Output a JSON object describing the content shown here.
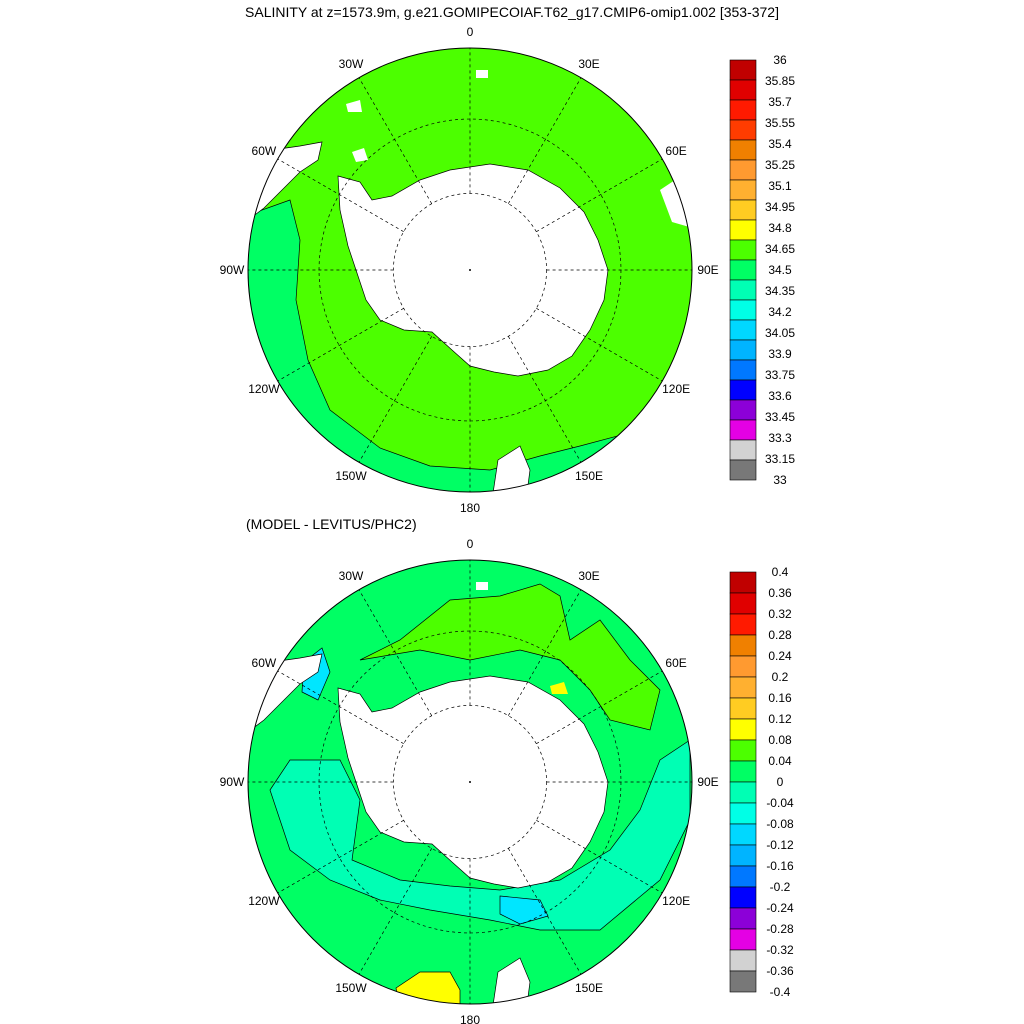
{
  "titles": {
    "main": "SALINITY at z=1573.9m, g.e21.GOMIPECOIAF.T62_g17.CMIP6-omip1.002 [353-372]",
    "difference": "(MODEL - LEVITUS/PHC2)"
  },
  "longitude_labels": [
    "0",
    "30E",
    "60E",
    "90E",
    "120E",
    "150E",
    "180",
    "150W",
    "120W",
    "90W",
    "60W",
    "30W"
  ],
  "colorbars": [
    {
      "id": "salinity",
      "labels": [
        "36",
        "35.85",
        "35.7",
        "35.55",
        "35.4",
        "35.25",
        "35.1",
        "34.95",
        "34.8",
        "34.65",
        "34.5",
        "34.35",
        "34.2",
        "34.05",
        "33.9",
        "33.75",
        "33.6",
        "33.45",
        "33.3",
        "33.15",
        "33"
      ],
      "colors": [
        "#c00000",
        "#e00000",
        "#ff1a00",
        "#ff3c00",
        "#f08000",
        "#ff9a30",
        "#ffb030",
        "#ffcc22",
        "#ffff00",
        "#4cff00",
        "#00ff64",
        "#00ffb4",
        "#00ffe6",
        "#00d8ff",
        "#00b4ff",
        "#0078ff",
        "#0000ff",
        "#8c00d8",
        "#e400e4",
        "#d2d2d2",
        "#787878"
      ]
    },
    {
      "id": "difference",
      "labels": [
        "0.4",
        "0.36",
        "0.32",
        "0.28",
        "0.24",
        "0.2",
        "0.16",
        "0.12",
        "0.08",
        "0.04",
        "0",
        "-0.04",
        "-0.08",
        "-0.12",
        "-0.16",
        "-0.2",
        "-0.24",
        "-0.28",
        "-0.32",
        "-0.36",
        "-0.4"
      ],
      "colors": [
        "#c00000",
        "#e00000",
        "#ff1a00",
        "#f08000",
        "#ff9a30",
        "#ffb030",
        "#ffcc22",
        "#ffff00",
        "#4cff00",
        "#00ff64",
        "#00ffb4",
        "#00ffe6",
        "#00d8ff",
        "#00b4ff",
        "#0078ff",
        "#0000ff",
        "#8c00d8",
        "#e400e4",
        "#d2d2d2",
        "#787878"
      ]
    }
  ],
  "colors": {
    "ocean_top": "#4cff00",
    "ocean_band": "#00ff64",
    "ocean_cyan": "#00ffb4",
    "land": "#ffffff",
    "yellow": "#ffff00"
  }
}
